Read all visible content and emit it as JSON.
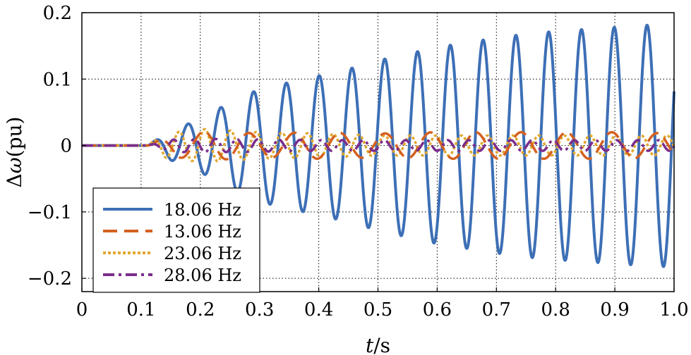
{
  "chart_data": {
    "type": "line",
    "title": "",
    "xlabel": "t/s",
    "xlabel_italic": "t",
    "xlabel_rest": "/s",
    "ylabel": "Δω(pu)",
    "ylabel_delta": "Δ",
    "ylabel_omega": "ω",
    "ylabel_rest": "(pu)",
    "xlim": [
      0,
      1.0
    ],
    "ylim": [
      -0.22,
      0.2
    ],
    "grid": true,
    "legend_position": "bottom-left",
    "x_ticks": [
      {
        "value": 0,
        "label": "0"
      },
      {
        "value": 0.1,
        "label": "0.1"
      },
      {
        "value": 0.2,
        "label": "0.2"
      },
      {
        "value": 0.3,
        "label": "0.3"
      },
      {
        "value": 0.4,
        "label": "0.4"
      },
      {
        "value": 0.5,
        "label": "0.5"
      },
      {
        "value": 0.6,
        "label": "0.6"
      },
      {
        "value": 0.7,
        "label": "0.7"
      },
      {
        "value": 0.8,
        "label": "0.8"
      },
      {
        "value": 0.9,
        "label": "0.9"
      },
      {
        "value": 1.0,
        "label": "1.0"
      }
    ],
    "y_ticks": [
      {
        "value": 0.2,
        "label": "0.2"
      },
      {
        "value": 0.1,
        "label": "0.1"
      },
      {
        "value": 0,
        "label": "0"
      },
      {
        "value": -0.1,
        "label": "−0.1"
      },
      {
        "value": -0.2,
        "label": "−0.2"
      }
    ],
    "series": [
      {
        "name": "18.06 Hz",
        "color": "#3d6fb6",
        "dash": "solid",
        "frequency_hz": 18.06,
        "onset_s": 0.11,
        "envelope": [
          [
            0.11,
            0.0
          ],
          [
            0.15,
            0.022
          ],
          [
            0.2,
            0.04
          ],
          [
            0.25,
            0.065
          ],
          [
            0.3,
            0.085
          ],
          [
            0.35,
            0.095
          ],
          [
            0.4,
            0.105
          ],
          [
            0.45,
            0.115
          ],
          [
            0.5,
            0.128
          ],
          [
            0.55,
            0.138
          ],
          [
            0.6,
            0.148
          ],
          [
            0.65,
            0.155
          ],
          [
            0.7,
            0.162
          ],
          [
            0.75,
            0.168
          ],
          [
            0.8,
            0.172
          ],
          [
            0.85,
            0.175
          ],
          [
            0.9,
            0.178
          ],
          [
            0.95,
            0.181
          ],
          [
            1.0,
            0.183
          ]
        ]
      },
      {
        "name": "13.06 Hz",
        "color": "#d4611f",
        "dash": "dashed",
        "frequency_hz": 13.06,
        "onset_s": 0.11,
        "envelope": [
          [
            0.11,
            0.0
          ],
          [
            0.16,
            0.018
          ],
          [
            0.22,
            0.022
          ],
          [
            0.3,
            0.018
          ],
          [
            0.4,
            0.02
          ],
          [
            0.5,
            0.018
          ],
          [
            0.6,
            0.02
          ],
          [
            0.7,
            0.02
          ],
          [
            0.8,
            0.02
          ],
          [
            0.9,
            0.02
          ],
          [
            1.0,
            0.018
          ]
        ]
      },
      {
        "name": "23.06 Hz",
        "color": "#e0a830",
        "dash": "dotted",
        "frequency_hz": 23.06,
        "onset_s": 0.11,
        "envelope": [
          [
            0.11,
            0.0
          ],
          [
            0.14,
            0.018
          ],
          [
            0.2,
            0.025
          ],
          [
            0.3,
            0.02
          ],
          [
            0.4,
            0.018
          ],
          [
            0.5,
            0.015
          ],
          [
            0.6,
            0.015
          ],
          [
            0.7,
            0.015
          ],
          [
            0.8,
            0.015
          ],
          [
            0.9,
            0.015
          ],
          [
            1.0,
            0.015
          ]
        ]
      },
      {
        "name": "28.06 Hz",
        "color": "#7b2d8b",
        "dash": "dashdot",
        "frequency_hz": 28.06,
        "onset_s": 0.11,
        "envelope": [
          [
            0.11,
            0.0
          ],
          [
            0.16,
            0.01
          ],
          [
            0.25,
            0.01
          ],
          [
            0.4,
            0.008
          ],
          [
            0.6,
            0.008
          ],
          [
            0.8,
            0.008
          ],
          [
            1.0,
            0.008
          ]
        ]
      }
    ]
  }
}
